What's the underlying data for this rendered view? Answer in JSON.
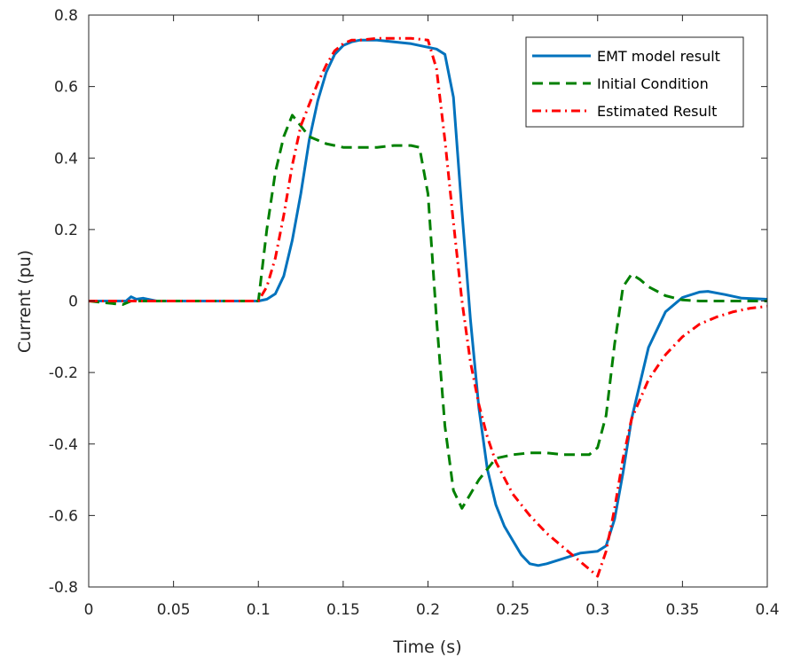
{
  "chart_data": {
    "type": "line",
    "xlabel": "Time (s)",
    "ylabel": "Current (pu)",
    "xlim": [
      0,
      0.4
    ],
    "ylim": [
      -0.8,
      0.8
    ],
    "xticks": [
      0,
      0.05,
      0.1,
      0.15,
      0.2,
      0.25,
      0.3,
      0.35,
      0.4
    ],
    "xtick_labels": [
      "0",
      "0.05",
      "0.1",
      "0.15",
      "0.2",
      "0.25",
      "0.3",
      "0.35",
      "0.4"
    ],
    "yticks": [
      -0.8,
      -0.6,
      -0.4,
      -0.2,
      0,
      0.2,
      0.4,
      0.6,
      0.8
    ],
    "ytick_labels": [
      "-0.8",
      "-0.6",
      "-0.4",
      "-0.2",
      "0",
      "0.2",
      "0.4",
      "0.6",
      "0.8"
    ],
    "grid": false,
    "legend_position": "top-right",
    "series": [
      {
        "name": "EMT model result",
        "color": "#0072BD",
        "style": "solid",
        "points": [
          [
            0,
            0
          ],
          [
            0.022,
            0
          ],
          [
            0.025,
            0.012
          ],
          [
            0.028,
            0.005
          ],
          [
            0.032,
            0.008
          ],
          [
            0.04,
            0
          ],
          [
            0.1,
            0
          ],
          [
            0.105,
            0.005
          ],
          [
            0.11,
            0.02
          ],
          [
            0.115,
            0.07
          ],
          [
            0.12,
            0.17
          ],
          [
            0.125,
            0.3
          ],
          [
            0.13,
            0.45
          ],
          [
            0.135,
            0.56
          ],
          [
            0.14,
            0.64
          ],
          [
            0.145,
            0.69
          ],
          [
            0.15,
            0.715
          ],
          [
            0.155,
            0.725
          ],
          [
            0.16,
            0.73
          ],
          [
            0.17,
            0.73
          ],
          [
            0.18,
            0.725
          ],
          [
            0.19,
            0.72
          ],
          [
            0.2,
            0.71
          ],
          [
            0.205,
            0.705
          ],
          [
            0.21,
            0.69
          ],
          [
            0.215,
            0.57
          ],
          [
            0.22,
            0.25
          ],
          [
            0.225,
            -0.05
          ],
          [
            0.23,
            -0.3
          ],
          [
            0.235,
            -0.47
          ],
          [
            0.24,
            -0.57
          ],
          [
            0.245,
            -0.63
          ],
          [
            0.25,
            -0.67
          ],
          [
            0.255,
            -0.71
          ],
          [
            0.26,
            -0.735
          ],
          [
            0.265,
            -0.74
          ],
          [
            0.27,
            -0.735
          ],
          [
            0.28,
            -0.72
          ],
          [
            0.29,
            -0.705
          ],
          [
            0.3,
            -0.7
          ],
          [
            0.305,
            -0.685
          ],
          [
            0.31,
            -0.61
          ],
          [
            0.315,
            -0.48
          ],
          [
            0.32,
            -0.33
          ],
          [
            0.33,
            -0.13
          ],
          [
            0.34,
            -0.03
          ],
          [
            0.35,
            0.01
          ],
          [
            0.36,
            0.025
          ],
          [
            0.365,
            0.027
          ],
          [
            0.375,
            0.018
          ],
          [
            0.385,
            0.008
          ],
          [
            0.4,
            0.005
          ]
        ]
      },
      {
        "name": "Initial Condition",
        "color": "#008000",
        "style": "dashed",
        "points": [
          [
            0,
            0
          ],
          [
            0.02,
            -0.01
          ],
          [
            0.025,
            0
          ],
          [
            0.1,
            0
          ],
          [
            0.105,
            0.2
          ],
          [
            0.11,
            0.36
          ],
          [
            0.115,
            0.46
          ],
          [
            0.12,
            0.52
          ],
          [
            0.125,
            0.49
          ],
          [
            0.13,
            0.46
          ],
          [
            0.14,
            0.44
          ],
          [
            0.15,
            0.43
          ],
          [
            0.16,
            0.43
          ],
          [
            0.17,
            0.43
          ],
          [
            0.18,
            0.435
          ],
          [
            0.19,
            0.435
          ],
          [
            0.195,
            0.43
          ],
          [
            0.2,
            0.3
          ],
          [
            0.205,
            -0.05
          ],
          [
            0.21,
            -0.35
          ],
          [
            0.215,
            -0.53
          ],
          [
            0.22,
            -0.58
          ],
          [
            0.225,
            -0.54
          ],
          [
            0.23,
            -0.5
          ],
          [
            0.24,
            -0.44
          ],
          [
            0.25,
            -0.43
          ],
          [
            0.26,
            -0.425
          ],
          [
            0.27,
            -0.425
          ],
          [
            0.28,
            -0.43
          ],
          [
            0.29,
            -0.43
          ],
          [
            0.295,
            -0.43
          ],
          [
            0.3,
            -0.41
          ],
          [
            0.305,
            -0.32
          ],
          [
            0.31,
            -0.12
          ],
          [
            0.315,
            0.04
          ],
          [
            0.32,
            0.075
          ],
          [
            0.325,
            0.06
          ],
          [
            0.33,
            0.04
          ],
          [
            0.34,
            0.015
          ],
          [
            0.35,
            0.003
          ],
          [
            0.36,
            0
          ],
          [
            0.4,
            0
          ]
        ]
      },
      {
        "name": "Estimated Result",
        "color": "#FF0000",
        "style": "dashdot",
        "points": [
          [
            0,
            0
          ],
          [
            0.1,
            0
          ],
          [
            0.105,
            0.04
          ],
          [
            0.11,
            0.12
          ],
          [
            0.115,
            0.24
          ],
          [
            0.12,
            0.38
          ],
          [
            0.125,
            0.49
          ],
          [
            0.13,
            0.55
          ],
          [
            0.135,
            0.61
          ],
          [
            0.14,
            0.66
          ],
          [
            0.145,
            0.7
          ],
          [
            0.15,
            0.72
          ],
          [
            0.155,
            0.73
          ],
          [
            0.16,
            0.73
          ],
          [
            0.17,
            0.735
          ],
          [
            0.18,
            0.735
          ],
          [
            0.19,
            0.735
          ],
          [
            0.2,
            0.73
          ],
          [
            0.205,
            0.65
          ],
          [
            0.21,
            0.45
          ],
          [
            0.215,
            0.22
          ],
          [
            0.22,
            0
          ],
          [
            0.225,
            -0.17
          ],
          [
            0.23,
            -0.29
          ],
          [
            0.235,
            -0.38
          ],
          [
            0.24,
            -0.45
          ],
          [
            0.25,
            -0.54
          ],
          [
            0.26,
            -0.6
          ],
          [
            0.27,
            -0.65
          ],
          [
            0.28,
            -0.69
          ],
          [
            0.29,
            -0.73
          ],
          [
            0.295,
            -0.75
          ],
          [
            0.3,
            -0.77
          ],
          [
            0.305,
            -0.7
          ],
          [
            0.31,
            -0.58
          ],
          [
            0.315,
            -0.44
          ],
          [
            0.32,
            -0.33
          ],
          [
            0.33,
            -0.22
          ],
          [
            0.34,
            -0.15
          ],
          [
            0.35,
            -0.1
          ],
          [
            0.36,
            -0.065
          ],
          [
            0.37,
            -0.045
          ],
          [
            0.38,
            -0.03
          ],
          [
            0.39,
            -0.02
          ],
          [
            0.4,
            -0.015
          ]
        ]
      }
    ]
  }
}
